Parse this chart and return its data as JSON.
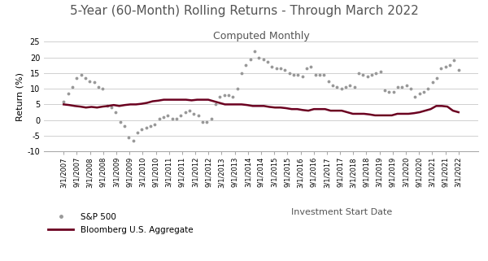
{
  "title": "5-Year (60-Month) Rolling Returns - Through March 2022",
  "subtitle": "Computed Monthly",
  "xlabel": "Investment Start Date",
  "ylabel": "Return (%)",
  "ylim": [
    -10,
    25
  ],
  "yticks": [
    -10,
    -5,
    0,
    5,
    10,
    15,
    20,
    25
  ],
  "title_fontsize": 11,
  "subtitle_fontsize": 9,
  "axis_label_fontsize": 8,
  "tick_fontsize": 7,
  "background_color": "#ffffff",
  "sp500_color": "#999999",
  "agg_color": "#6B0020",
  "x_labels": [
    "3/1/2007",
    "9/1/2007",
    "3/1/2008",
    "9/1/2008",
    "3/1/2009",
    "9/1/2009",
    "3/1/2010",
    "9/1/2010",
    "3/1/2011",
    "9/1/2011",
    "3/1/2012",
    "9/1/2012",
    "3/1/2013",
    "9/1/2013",
    "3/1/2014",
    "9/1/2014",
    "3/1/2015",
    "9/1/2015",
    "3/1/2016",
    "9/1/2016",
    "3/1/2017",
    "9/1/2017",
    "3/1/2018",
    "9/1/2018",
    "3/1/2019",
    "9/1/2019",
    "3/1/2020",
    "9/1/2020",
    "3/1/2021",
    "9/1/2021",
    "3/1/2022"
  ],
  "sp500": [
    6.0,
    8.5,
    10.5,
    13.5,
    14.5,
    13.5,
    12.5,
    12.0,
    10.5,
    10.0,
    4.5,
    4.0,
    2.5,
    -0.5,
    -2.0,
    -5.5,
    -6.5,
    -4.0,
    -3.0,
    -2.5,
    -2.0,
    -1.5,
    0.5,
    1.0,
    1.5,
    0.5,
    0.5,
    1.5,
    2.5,
    3.0,
    2.0,
    1.5,
    -0.5,
    -0.5,
    0.5,
    5.0,
    7.5,
    8.0,
    8.0,
    7.5,
    10.0,
    15.0,
    17.5,
    19.5,
    22.0,
    20.0,
    19.5,
    18.5,
    17.0,
    16.5,
    16.5,
    16.0,
    15.0,
    14.5,
    14.5,
    14.0,
    16.5,
    17.0,
    14.5,
    14.5,
    14.5,
    12.5,
    11.0,
    10.5,
    10.0,
    10.5,
    11.0,
    10.5,
    15.0,
    14.5,
    14.0,
    14.5,
    15.0,
    15.5,
    9.5,
    9.0,
    9.0,
    10.5,
    10.5,
    11.0,
    10.0,
    7.5,
    8.5,
    9.0,
    10.0,
    12.0,
    13.5,
    16.5,
    17.0,
    17.5,
    19.0,
    16.0
  ],
  "agg": [
    5.0,
    4.8,
    4.5,
    4.3,
    4.0,
    4.2,
    4.0,
    4.3,
    4.5,
    4.8,
    4.5,
    4.8,
    5.0,
    5.0,
    5.2,
    5.5,
    6.0,
    6.2,
    6.5,
    6.5,
    6.5,
    6.5,
    6.5,
    6.3,
    6.5,
    6.5,
    6.5,
    6.0,
    5.5,
    5.0,
    5.0,
    5.0,
    5.0,
    4.8,
    4.5,
    4.5,
    4.5,
    4.2,
    4.0,
    4.0,
    3.8,
    3.5,
    3.5,
    3.2,
    3.0,
    3.5,
    3.5,
    3.5,
    3.0,
    3.0,
    3.0,
    2.5,
    2.0,
    2.0,
    2.0,
    1.8,
    1.5,
    1.5,
    1.5,
    1.5,
    2.0,
    2.0,
    2.0,
    2.2,
    2.5,
    3.0,
    3.5,
    4.5,
    4.5,
    4.3,
    3.0,
    2.5
  ]
}
